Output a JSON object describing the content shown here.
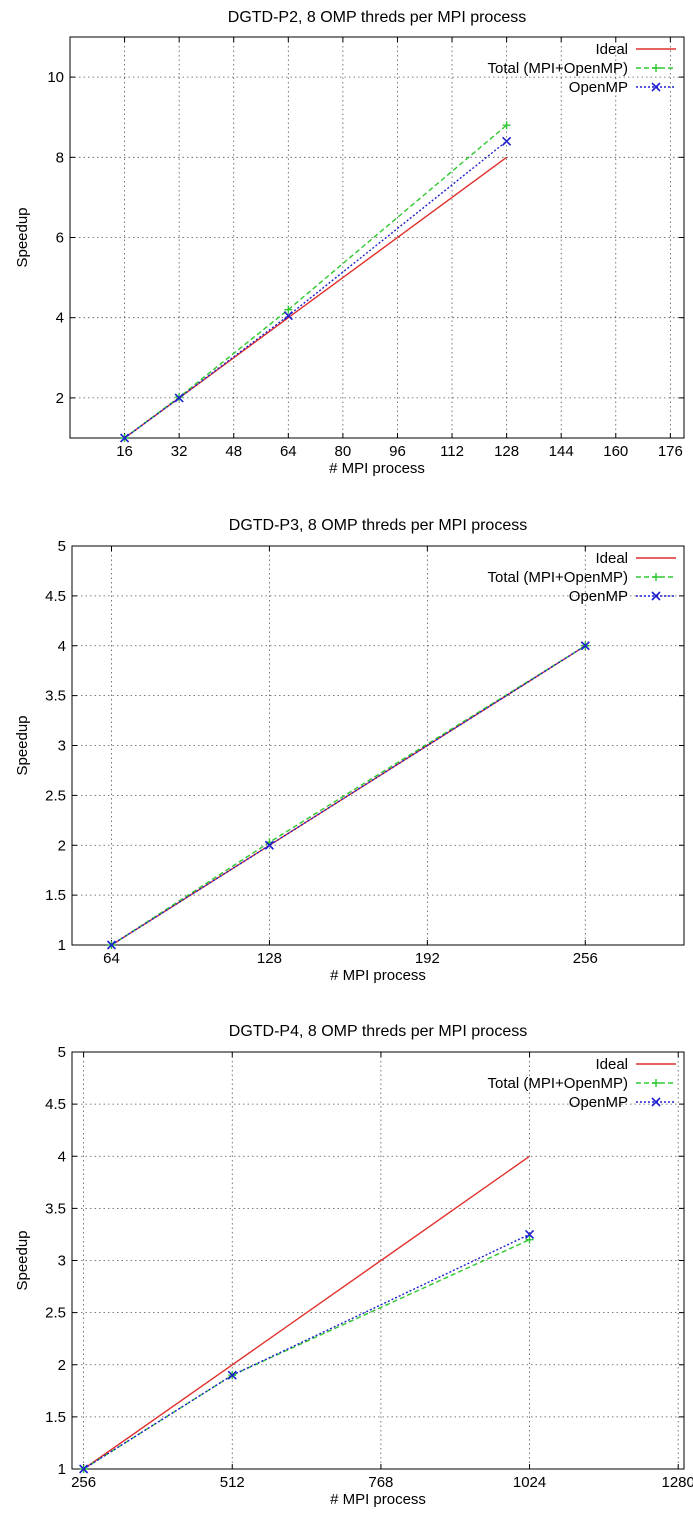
{
  "chart_data": [
    {
      "type": "line",
      "title": "DGTD-P2, 8 OMP threds per MPI process",
      "xlabel": "# MPI process",
      "ylabel": "Speedup",
      "xlim": [
        0,
        180
      ],
      "ylim": [
        1,
        11
      ],
      "xticks": [
        16,
        32,
        48,
        64,
        80,
        96,
        112,
        128,
        144,
        160,
        176
      ],
      "yticks": [
        2,
        4,
        6,
        8,
        10
      ],
      "grid": true,
      "legend_position": "top-right",
      "series": [
        {
          "name": "Ideal",
          "color": "#e0302c",
          "dash": "solid",
          "marker": "",
          "x": [
            16,
            32,
            64,
            128
          ],
          "y": [
            1,
            2,
            4,
            8
          ]
        },
        {
          "name": "Total (MPI+OpenMP)",
          "color": "#2ec82e",
          "dash": "dashed",
          "marker": "+",
          "x": [
            16,
            32,
            64,
            128
          ],
          "y": [
            1,
            2.02,
            4.2,
            8.8
          ]
        },
        {
          "name": "OpenMP",
          "color": "#2020d0",
          "dash": "dotted",
          "marker": "x",
          "x": [
            16,
            32,
            64,
            128
          ],
          "y": [
            1,
            2,
            4.05,
            8.4
          ]
        }
      ]
    },
    {
      "type": "line",
      "title": "DGTD-P3, 8 OMP threds per MPI process",
      "xlabel": "# MPI process",
      "ylabel": "Speedup",
      "xlim": [
        48,
        296
      ],
      "ylim": [
        1,
        5
      ],
      "xticks": [
        64,
        128,
        192,
        256
      ],
      "yticks": [
        "1",
        "1.5",
        "2",
        "2.5",
        "3",
        "3.5",
        "4",
        "4.5",
        "5"
      ],
      "grid": true,
      "legend_position": "top-right",
      "series": [
        {
          "name": "Ideal",
          "color": "#e0302c",
          "dash": "solid",
          "marker": "",
          "x": [
            64,
            128,
            256
          ],
          "y": [
            1,
            2,
            4
          ]
        },
        {
          "name": "Total (MPI+OpenMP)",
          "color": "#2ec82e",
          "dash": "dashed",
          "marker": "+",
          "x": [
            64,
            128,
            256
          ],
          "y": [
            1,
            2.03,
            4
          ]
        },
        {
          "name": "OpenMP",
          "color": "#2020d0",
          "dash": "dotted",
          "marker": "x",
          "x": [
            64,
            128,
            256
          ],
          "y": [
            1,
            2,
            4
          ]
        }
      ]
    },
    {
      "type": "line",
      "title": "DGTD-P4, 8 OMP threds per MPI process",
      "xlabel": "# MPI process",
      "ylabel": "Speedup",
      "xlim": [
        236,
        1290
      ],
      "ylim": [
        1,
        5
      ],
      "xticks": [
        256,
        512,
        768,
        1024,
        1280
      ],
      "yticks": [
        "1",
        "1.5",
        "2",
        "2.5",
        "3",
        "3.5",
        "4",
        "4.5",
        "5"
      ],
      "grid": true,
      "legend_position": "top-right",
      "series": [
        {
          "name": "Ideal",
          "color": "#e0302c",
          "dash": "solid",
          "marker": "",
          "x": [
            256,
            512,
            1024
          ],
          "y": [
            1,
            2,
            4
          ]
        },
        {
          "name": "Total (MPI+OpenMP)",
          "color": "#2ec82e",
          "dash": "dashed",
          "marker": "+",
          "x": [
            256,
            512,
            1024
          ],
          "y": [
            1,
            1.9,
            3.2
          ]
        },
        {
          "name": "OpenMP",
          "color": "#2020d0",
          "dash": "dotted",
          "marker": "x",
          "x": [
            256,
            512,
            1024
          ],
          "y": [
            1,
            1.9,
            3.25
          ]
        }
      ]
    }
  ]
}
